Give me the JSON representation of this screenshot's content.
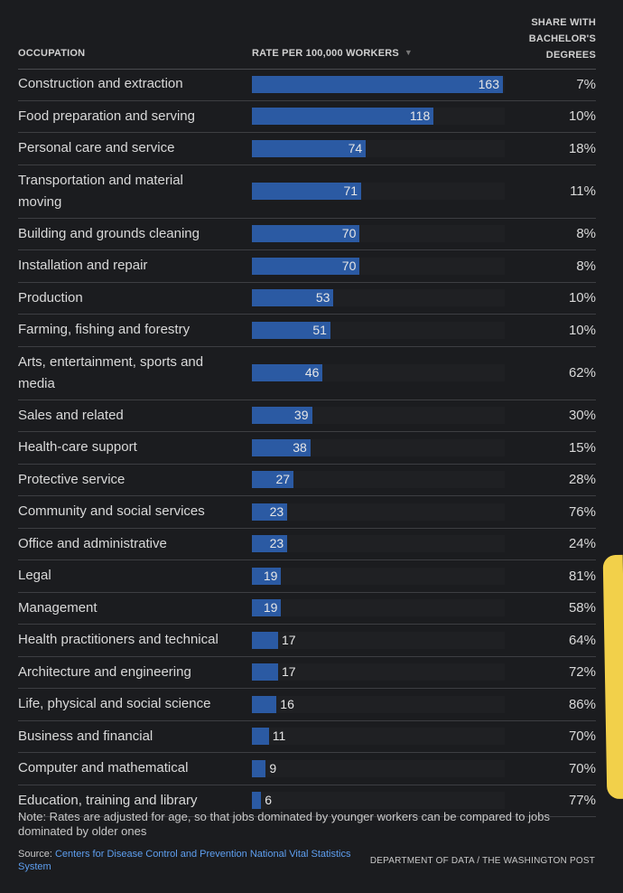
{
  "headers": {
    "occupation": "OCCUPATION",
    "rate": "RATE PER 100,000 WORKERS",
    "share_line1": "SHARE WITH",
    "share_line2": "BACHELOR'S",
    "share_line3": "DEGREES"
  },
  "icons": {
    "sort": "sort-descending-icon"
  },
  "colors": {
    "bar": "#2b5aa3",
    "link": "#5e9ff0",
    "highlight": "#f2d04a"
  },
  "chart_data": {
    "type": "table",
    "columns": [
      "OCCUPATION",
      "RATE PER 100,000 WORKERS",
      "SHARE WITH BACHELOR'S DEGREES"
    ],
    "max_rate": 163,
    "rows": [
      {
        "occupation": "Construction and extraction",
        "rate": 163,
        "share": "7%"
      },
      {
        "occupation": "Food preparation and serving",
        "rate": 118,
        "share": "10%"
      },
      {
        "occupation": "Personal care and service",
        "rate": 74,
        "share": "18%"
      },
      {
        "occupation": "Transportation and material moving",
        "rate": 71,
        "share": "11%"
      },
      {
        "occupation": "Building and grounds cleaning",
        "rate": 70,
        "share": "8%"
      },
      {
        "occupation": "Installation and repair",
        "rate": 70,
        "share": "8%"
      },
      {
        "occupation": "Production",
        "rate": 53,
        "share": "10%"
      },
      {
        "occupation": "Farming, fishing and forestry",
        "rate": 51,
        "share": "10%"
      },
      {
        "occupation": "Arts, entertainment, sports and media",
        "rate": 46,
        "share": "62%"
      },
      {
        "occupation": "Sales and related",
        "rate": 39,
        "share": "30%"
      },
      {
        "occupation": "Health-care support",
        "rate": 38,
        "share": "15%"
      },
      {
        "occupation": "Protective service",
        "rate": 27,
        "share": "28%"
      },
      {
        "occupation": "Community and social services",
        "rate": 23,
        "share": "76%"
      },
      {
        "occupation": "Office and administrative",
        "rate": 23,
        "share": "24%"
      },
      {
        "occupation": "Legal",
        "rate": 19,
        "share": "81%"
      },
      {
        "occupation": "Management",
        "rate": 19,
        "share": "58%"
      },
      {
        "occupation": "Health practitioners and technical",
        "rate": 17,
        "share": "64%"
      },
      {
        "occupation": "Architecture and engineering",
        "rate": 17,
        "share": "72%"
      },
      {
        "occupation": "Life, physical and social science",
        "rate": 16,
        "share": "86%"
      },
      {
        "occupation": "Business and financial",
        "rate": 11,
        "share": "70%"
      },
      {
        "occupation": "Computer and mathematical",
        "rate": 9,
        "share": "70%"
      },
      {
        "occupation": "Education, training and library",
        "rate": 6,
        "share": "77%"
      }
    ]
  },
  "footer": {
    "note": "Note: Rates are adjusted for age, so that jobs dominated by younger workers can be compared to jobs dominated by older ones",
    "source_label": "Source:",
    "source_link": "Centers for Disease Control and Prevention National Vital Statistics System",
    "credit": "DEPARTMENT OF DATA / THE WASHINGTON POST"
  }
}
